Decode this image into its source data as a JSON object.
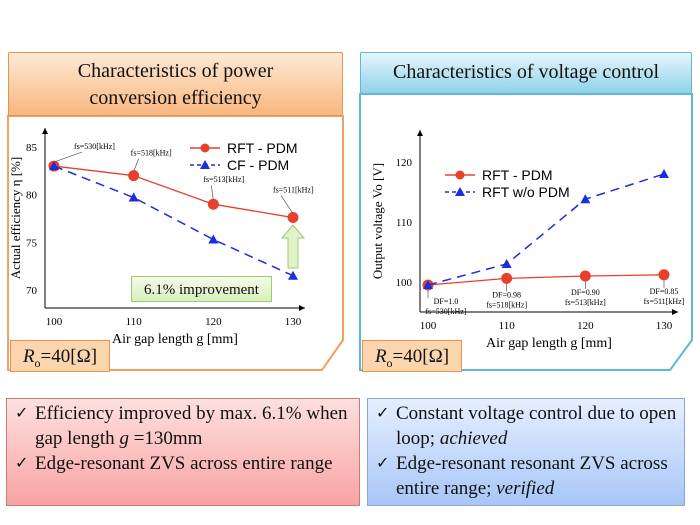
{
  "left": {
    "title_line1": "Characteristics of power",
    "title_line2": "conversion efficiency",
    "ro_label": "R",
    "ro_sub": "o",
    "ro_value": "=40[Ω]",
    "improvement": "6.1% improvement",
    "accent": "#f0a060"
  },
  "right": {
    "title": "Characteristics of voltage control",
    "ro_label": "R",
    "ro_sub": "o",
    "ro_value": "=40[Ω]",
    "accent": "#5fb8d6"
  },
  "bullets_left": [
    {
      "parts": [
        "Efficiency improved by max. 6.1% when gap length ",
        "g",
        " =130mm"
      ]
    },
    {
      "parts": [
        "Edge-resonant ZVS across entire range"
      ]
    }
  ],
  "bullets_right": [
    {
      "text": "Constant voltage control due to open loop; ",
      "em": "achieved"
    },
    {
      "text": "Edge-resonant resonant ZVS across entire range; ",
      "em": "verified"
    }
  ],
  "chart_data": [
    {
      "type": "line",
      "xlabel": "Air gap length g [mm]",
      "ylabel": "Actual efficiency η [%]",
      "x": [
        100,
        110,
        120,
        130
      ],
      "xticks": [
        100,
        110,
        120,
        130
      ],
      "yticks": [
        70,
        75,
        80,
        85
      ],
      "xlim": [
        100,
        130
      ],
      "ylim": [
        68,
        86
      ],
      "grid": false,
      "legend": "top-right",
      "series": [
        {
          "name": "RFT - PDM",
          "values": [
            83,
            82,
            79,
            77.6
          ],
          "color": "#e8402a",
          "style": "solid",
          "marker": "circle"
        },
        {
          "name": "CF - PDM",
          "values": [
            83,
            79.7,
            75.3,
            71.5
          ],
          "color": "#1a2ee0",
          "style": "dashed",
          "marker": "triangle"
        }
      ],
      "annotations": [
        "fs=530[kHz]",
        "fs=518[kHz]",
        "fs=513[kHz]",
        "fs=511[kHz]"
      ]
    },
    {
      "type": "line",
      "xlabel": "Air gap length g [mm]",
      "ylabel": "Output voltage Vo [V]",
      "x": [
        100,
        110,
        120,
        130
      ],
      "xticks": [
        100,
        110,
        120,
        130
      ],
      "yticks": [
        100,
        110,
        120
      ],
      "xlim": [
        100,
        130
      ],
      "ylim": [
        95,
        124
      ],
      "grid": false,
      "legend": "top-left",
      "series": [
        {
          "name": "RFT - PDM",
          "values": [
            99.5,
            100.6,
            101,
            101.2
          ],
          "color": "#e8402a",
          "style": "solid",
          "marker": "circle"
        },
        {
          "name": "RFT w/o PDM",
          "values": [
            99.5,
            103,
            113.8,
            118
          ],
          "color": "#1a2ee0",
          "style": "dashed",
          "marker": "triangle"
        }
      ],
      "annotations": [
        [
          "DF=1.0",
          "fs=530[kHz]"
        ],
        [
          "DF=0.98",
          "fs=518[kHz]"
        ],
        [
          "DF=0.90",
          "fs=513[kHz]"
        ],
        [
          "DF=0.85",
          "fs=511[kHz]"
        ]
      ]
    }
  ]
}
